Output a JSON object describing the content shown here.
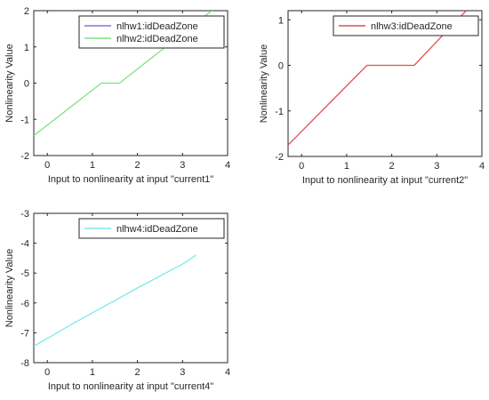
{
  "chart_data": [
    {
      "type": "line",
      "xlabel": "Input to nonlinearity at input \"current1\"",
      "ylabel": "Nonlinearity Value",
      "xlim": [
        -0.3,
        4
      ],
      "ylim": [
        -2,
        2
      ],
      "xticks": [
        0,
        1,
        2,
        3,
        4
      ],
      "yticks": [
        -2,
        -1,
        0,
        1,
        2
      ],
      "legend_position": "top-right",
      "series": [
        {
          "name": "nlhw1:idDeadZone",
          "color": "#7b7bd6",
          "x": [],
          "y": []
        },
        {
          "name": "nlhw2:idDeadZone",
          "color": "#7ee27e",
          "x": [
            -0.3,
            1.2,
            1.6,
            3.7
          ],
          "y": [
            -1.45,
            0,
            0,
            2.05
          ]
        }
      ]
    },
    {
      "type": "line",
      "xlabel": "Input to nonlinearity at input \"current2\"",
      "ylabel": "Nonlinearity Value",
      "xlim": [
        -0.3,
        4
      ],
      "ylim": [
        -2,
        1.2
      ],
      "xticks": [
        0,
        1,
        2,
        3,
        4
      ],
      "yticks": [
        -2,
        -1,
        0,
        1
      ],
      "legend_position": "top-right",
      "series": [
        {
          "name": "nlhw3:idDeadZone",
          "color": "#d9534f",
          "x": [
            -0.3,
            1.45,
            2.5,
            3.65
          ],
          "y": [
            -1.75,
            0,
            0,
            1.2
          ]
        }
      ]
    },
    {
      "type": "line",
      "xlabel": "Input to nonlinearity at input \"current4\"",
      "ylabel": "Nonlinearity Value",
      "xlim": [
        -0.3,
        4
      ],
      "ylim": [
        -8,
        -3
      ],
      "xticks": [
        0,
        1,
        2,
        3,
        4
      ],
      "yticks": [
        -8,
        -7,
        -6,
        -5,
        -4,
        -3
      ],
      "legend_position": "top-right",
      "series": [
        {
          "name": "nlhw4:idDeadZone",
          "color": "#7fe9e9",
          "x": [
            -0.3,
            0.5,
            1.0,
            1.5,
            2.0,
            2.5,
            3.0,
            3.3
          ],
          "y": [
            -7.45,
            -6.75,
            -6.33,
            -5.92,
            -5.5,
            -5.1,
            -4.7,
            -4.4
          ]
        }
      ]
    }
  ]
}
